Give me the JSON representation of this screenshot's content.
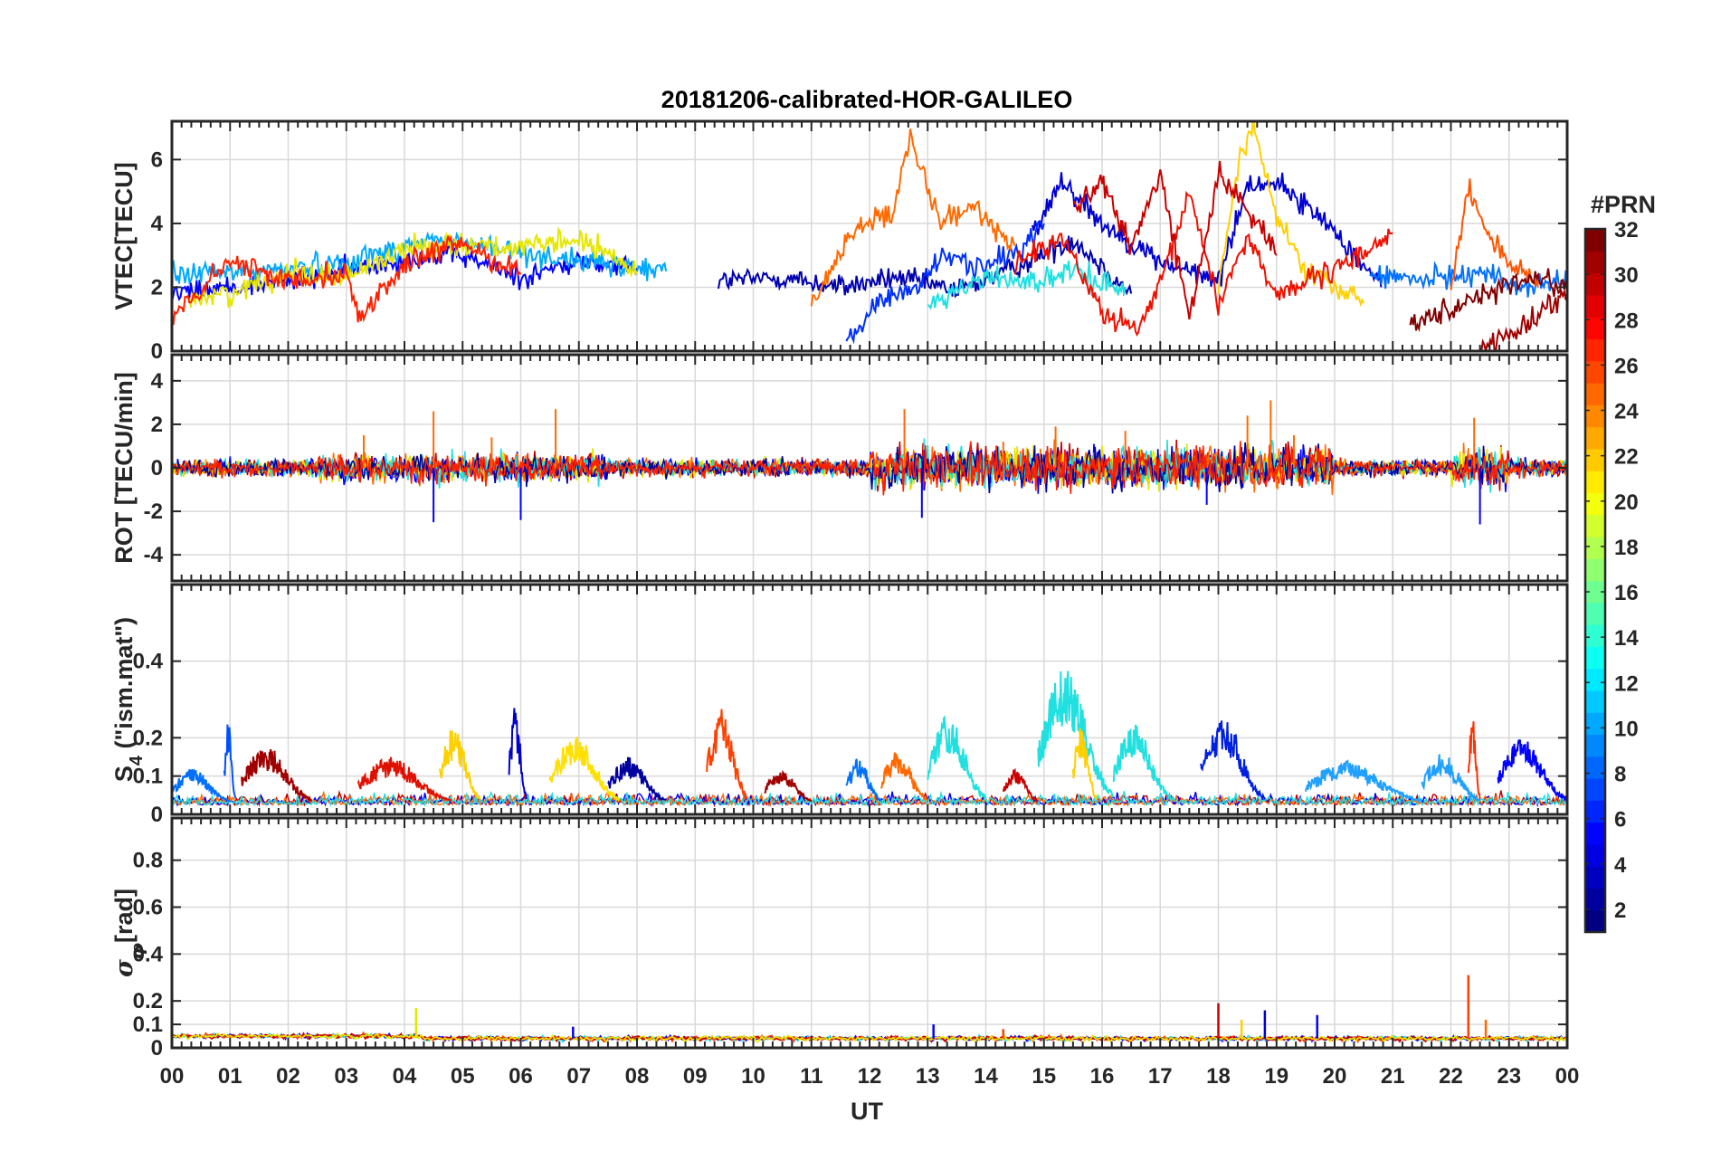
{
  "title": "20181206-calibrated-HOR-GALILEO",
  "xlabel": "UT",
  "x_tick_labels": [
    "00",
    "01",
    "02",
    "03",
    "04",
    "05",
    "06",
    "07",
    "08",
    "09",
    "10",
    "11",
    "12",
    "13",
    "14",
    "15",
    "16",
    "17",
    "18",
    "19",
    "20",
    "21",
    "22",
    "23",
    "00"
  ],
  "colorbar": {
    "label": "#PRN",
    "range": [
      1,
      32
    ],
    "ticks": [
      2,
      4,
      6,
      8,
      10,
      12,
      14,
      16,
      18,
      20,
      22,
      24,
      26,
      28,
      30,
      32
    ],
    "colormap": "jet"
  },
  "chart_data": [
    {
      "type": "line",
      "panel": "vtec",
      "ylabel": "VTEC[TECU]",
      "ylim": [
        0,
        7.2
      ],
      "yticks": [
        0,
        2,
        4,
        6
      ],
      "xlim": [
        0,
        24
      ],
      "grid": true,
      "series": [
        {
          "prn": 2,
          "color": "#0000b0",
          "x": [
            9.4,
            10.5,
            11.5,
            12.5,
            13.5,
            14.5,
            15.5,
            16.5
          ],
          "y": [
            2.2,
            2.3,
            2.0,
            2.3,
            1.9,
            2.6,
            3.5,
            1.8
          ]
        },
        {
          "prn": 4,
          "color": "#0000ff",
          "x": [
            0,
            1,
            2,
            3,
            4,
            5,
            6,
            7,
            8
          ],
          "y": [
            1.8,
            2.0,
            2.2,
            2.5,
            2.9,
            3.0,
            2.3,
            2.8,
            2.6
          ]
        },
        {
          "prn": 3,
          "color": "#0000d0",
          "x": [
            14.8,
            15.3,
            16,
            17,
            18,
            18.5,
            19,
            20,
            20.8
          ],
          "y": [
            3.6,
            5.4,
            4.0,
            2.8,
            2.2,
            5.2,
            5.3,
            3.8,
            2.0
          ]
        },
        {
          "prn": 6,
          "color": "#0030ff",
          "x": [
            11.6,
            12.2,
            12.8,
            13.3,
            14,
            14.6,
            15
          ],
          "y": [
            0.3,
            1.6,
            2.0,
            3.0,
            2.6,
            3.2,
            4.0
          ]
        },
        {
          "prn": 8,
          "color": "#0070ff",
          "x": [
            20.6,
            21.5,
            22.5,
            23.2,
            24
          ],
          "y": [
            2.4,
            2.2,
            2.5,
            2.0,
            2.2
          ]
        },
        {
          "prn": 10,
          "color": "#00a8ff",
          "x": [
            0,
            1.5,
            3,
            4.5,
            6,
            7.5,
            8.5
          ],
          "y": [
            2.4,
            2.5,
            2.8,
            3.5,
            3.1,
            2.7,
            2.5
          ]
        },
        {
          "prn": 12,
          "color": "#20e0e0",
          "x": [
            13,
            14,
            15,
            15.5,
            16,
            16.4
          ],
          "y": [
            1.5,
            2.3,
            2.2,
            2.5,
            2.1,
            2.0
          ]
        },
        {
          "prn": 19,
          "color": "#e6e600",
          "x": [
            0.3,
            1.2,
            2,
            3,
            4,
            5,
            6,
            7,
            8
          ],
          "y": [
            1.6,
            1.9,
            2.5,
            2.3,
            3.2,
            3.4,
            3.2,
            3.5,
            2.5
          ]
        },
        {
          "prn": 21,
          "color": "#ffd000",
          "x": [
            18,
            18.4,
            18.6,
            19,
            19.5,
            20.5
          ],
          "y": [
            2.0,
            6.5,
            7.0,
            4.2,
            2.5,
            1.5
          ]
        },
        {
          "prn": 24,
          "color": "#ff6a00",
          "x": [
            11,
            11.8,
            12.4,
            12.7,
            13.2,
            13.8,
            14.5
          ],
          "y": [
            1.5,
            4.0,
            4.2,
            6.7,
            4.0,
            4.5,
            3.3
          ]
        },
        {
          "prn": 25,
          "color": "#ff5500",
          "x": [
            22,
            22.3,
            22.6,
            23,
            23.5
          ],
          "y": [
            2.0,
            5.2,
            3.8,
            2.8,
            2.0
          ]
        },
        {
          "prn": 27,
          "color": "#ff2000",
          "x": [
            0,
            1,
            2,
            3,
            3.2,
            4,
            5,
            6
          ],
          "y": [
            1.0,
            2.8,
            2.2,
            2.5,
            1.0,
            2.7,
            3.4,
            2.4
          ]
        },
        {
          "prn": 28,
          "color": "#f01000",
          "x": [
            14.5,
            15.3,
            16,
            16.6,
            17,
            17.5,
            18,
            18.5,
            19,
            20,
            21
          ],
          "y": [
            2.8,
            3.6,
            1.2,
            0.6,
            2.0,
            5.0,
            1.5,
            3.6,
            1.8,
            2.5,
            3.7
          ]
        },
        {
          "prn": 30,
          "color": "#c80000",
          "x": [
            15.5,
            16,
            16.5,
            17,
            17.5,
            18,
            18.5,
            19
          ],
          "y": [
            4.5,
            5.3,
            3.2,
            5.6,
            1.0,
            5.5,
            4.5,
            3.0
          ]
        },
        {
          "prn": 31,
          "color": "#a00000",
          "x": [
            22.5,
            23,
            23.5,
            24
          ],
          "y": [
            0.1,
            0.5,
            1.2,
            1.8
          ]
        },
        {
          "prn": 32,
          "color": "#800000",
          "x": [
            21.3,
            22,
            22.5,
            23.5,
            24
          ],
          "y": [
            1.0,
            1.3,
            1.8,
            2.3,
            2.0
          ]
        }
      ]
    },
    {
      "type": "line",
      "panel": "rot",
      "ylabel": "ROT [TECU/min]",
      "ylim": [
        -5.2,
        5.2
      ],
      "yticks": [
        -4,
        -2,
        0,
        2,
        4
      ],
      "xlim": [
        0,
        24
      ],
      "grid": true,
      "note_series": "dense noise around 0 for all PRNs",
      "spikes": [
        {
          "x": 3.3,
          "y": 1.5
        },
        {
          "x": 4.5,
          "y": 2.6
        },
        {
          "x": 4.5,
          "y": -2.5
        },
        {
          "x": 5.5,
          "y": 1.4
        },
        {
          "x": 6.0,
          "y": -2.4
        },
        {
          "x": 6.6,
          "y": 2.7
        },
        {
          "x": 12.6,
          "y": 2.7
        },
        {
          "x": 12.9,
          "y": -2.3
        },
        {
          "x": 14.3,
          "y": 1.2
        },
        {
          "x": 15.2,
          "y": 1.9
        },
        {
          "x": 16.4,
          "y": 1.7
        },
        {
          "x": 17.8,
          "y": -1.7
        },
        {
          "x": 18.5,
          "y": 2.4
        },
        {
          "x": 18.9,
          "y": 3.1
        },
        {
          "x": 19.3,
          "y": 1.5
        },
        {
          "x": 22.4,
          "y": 2.3
        },
        {
          "x": 22.5,
          "y": -2.6
        }
      ]
    },
    {
      "type": "line",
      "panel": "s4",
      "ylabel": "S4 (\"ism.mat\")",
      "ylim": [
        0,
        0.6
      ],
      "yticks": [
        0,
        0.1,
        0.2,
        0.4
      ],
      "xlim": [
        0,
        24
      ],
      "grid": true,
      "bursts": [
        {
          "x0": 0.0,
          "x1": 1.0,
          "peak": 0.12,
          "color": "#0070ff"
        },
        {
          "x0": 0.9,
          "x1": 1.1,
          "peak": 0.25,
          "color": "#0050ff"
        },
        {
          "x0": 1.2,
          "x1": 2.4,
          "peak": 0.18,
          "color": "#a00000"
        },
        {
          "x0": 3.2,
          "x1": 4.8,
          "peak": 0.15,
          "color": "#e01000"
        },
        {
          "x0": 4.6,
          "x1": 5.3,
          "peak": 0.23,
          "color": "#ffd000"
        },
        {
          "x0": 5.8,
          "x1": 6.1,
          "peak": 0.29,
          "color": "#0000d0"
        },
        {
          "x0": 6.5,
          "x1": 7.7,
          "peak": 0.21,
          "color": "#ffe000"
        },
        {
          "x0": 7.5,
          "x1": 8.5,
          "peak": 0.15,
          "color": "#0000a0"
        },
        {
          "x0": 9.2,
          "x1": 9.9,
          "peak": 0.28,
          "color": "#ff4000"
        },
        {
          "x0": 10.2,
          "x1": 11.0,
          "peak": 0.12,
          "color": "#a00000"
        },
        {
          "x0": 11.6,
          "x1": 12.2,
          "peak": 0.15,
          "color": "#0070ff"
        },
        {
          "x0": 12.2,
          "x1": 13.0,
          "peak": 0.17,
          "color": "#ff6a00"
        },
        {
          "x0": 13.0,
          "x1": 14.0,
          "peak": 0.26,
          "color": "#20e0e0"
        },
        {
          "x0": 14.3,
          "x1": 14.9,
          "peak": 0.12,
          "color": "#c80000"
        },
        {
          "x0": 14.9,
          "x1": 16.2,
          "peak": 0.38,
          "color": "#20e0e0"
        },
        {
          "x0": 15.5,
          "x1": 15.9,
          "peak": 0.23,
          "color": "#ffd000"
        },
        {
          "x0": 16.2,
          "x1": 17.2,
          "peak": 0.24,
          "color": "#20e0e0"
        },
        {
          "x0": 17.7,
          "x1": 18.8,
          "peak": 0.26,
          "color": "#0020e0"
        },
        {
          "x0": 19.5,
          "x1": 21.5,
          "peak": 0.14,
          "color": "#20a0ff"
        },
        {
          "x0": 21.5,
          "x1": 22.5,
          "peak": 0.16,
          "color": "#20a0ff"
        },
        {
          "x0": 22.3,
          "x1": 22.5,
          "peak": 0.26,
          "color": "#ff3000"
        },
        {
          "x0": 22.8,
          "x1": 24.0,
          "peak": 0.2,
          "color": "#0000ff"
        }
      ]
    },
    {
      "type": "line",
      "panel": "sigma_phi",
      "ylabel": "σφ[rad]",
      "ylim": [
        0,
        0.98
      ],
      "yticks": [
        0,
        0.1,
        0.2,
        0.4,
        0.6,
        0.8
      ],
      "xlim": [
        0,
        24
      ],
      "grid": true,
      "baseline": 0.04,
      "spikes": [
        {
          "x": 4.2,
          "y": 0.17,
          "color": "#e6e600"
        },
        {
          "x": 6.9,
          "y": 0.09,
          "color": "#0000ff"
        },
        {
          "x": 13.1,
          "y": 0.1,
          "color": "#0000ff"
        },
        {
          "x": 14.3,
          "y": 0.08,
          "color": "#ff4000"
        },
        {
          "x": 18.0,
          "y": 0.19,
          "color": "#c80000"
        },
        {
          "x": 18.4,
          "y": 0.12,
          "color": "#ffd000"
        },
        {
          "x": 18.8,
          "y": 0.16,
          "color": "#0000d0"
        },
        {
          "x": 19.7,
          "y": 0.14,
          "color": "#0000ff"
        },
        {
          "x": 22.3,
          "y": 0.31,
          "color": "#ff4000"
        },
        {
          "x": 22.6,
          "y": 0.12,
          "color": "#ff6a00"
        }
      ]
    }
  ]
}
